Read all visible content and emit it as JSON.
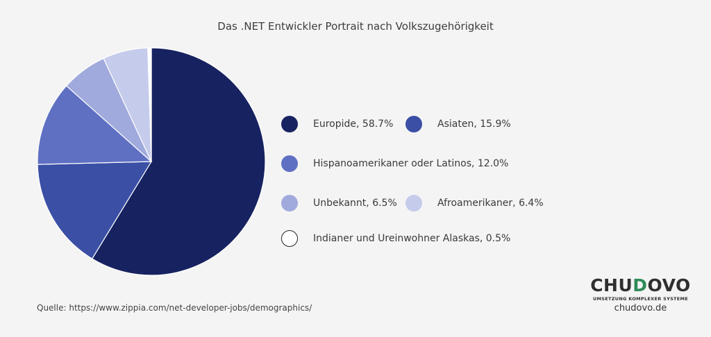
{
  "chart_data": {
    "type": "pie",
    "title": "Das .NET Entwickler Portrait nach Volkszugehörigkeit",
    "slices": [
      {
        "name": "Europide",
        "value": 58.7,
        "color": "#172261",
        "label": "Europide, 58.7%"
      },
      {
        "name": "Asiaten",
        "value": 15.9,
        "color": "#3b4fa5",
        "label": "Asiaten, 15.9%"
      },
      {
        "name": "Hispanoamerikaner oder Latinos",
        "value": 12.0,
        "color": "#5f70c3",
        "label": "Hispanoamerikaner oder Latinos, 12.0%"
      },
      {
        "name": "Unbekannt",
        "value": 6.5,
        "color": "#a1aadc",
        "label": "Unbekannt, 6.5%"
      },
      {
        "name": "Afroamerikaner",
        "value": 6.4,
        "color": "#c5cbeb",
        "label": "Afroamerikaner, 6.4%"
      },
      {
        "name": "Indianer und Ureinwohner Alaskas",
        "value": 0.5,
        "color": "#ffffff",
        "label": "Indianer und Ureinwohner Alaskas, 0.5%"
      }
    ],
    "legend_placement": "right"
  },
  "source": "Quelle: https://www.zippia.com/net-developer-jobs/demographics/",
  "logo": {
    "brand_prefix": "CHU",
    "brand_highlight": "D",
    "brand_suffix": "OVO",
    "tagline": "UMSETZUNG KOMPLEXER SYSTEME",
    "website": "chudovo.de",
    "highlight_color": "#2e8b57"
  }
}
